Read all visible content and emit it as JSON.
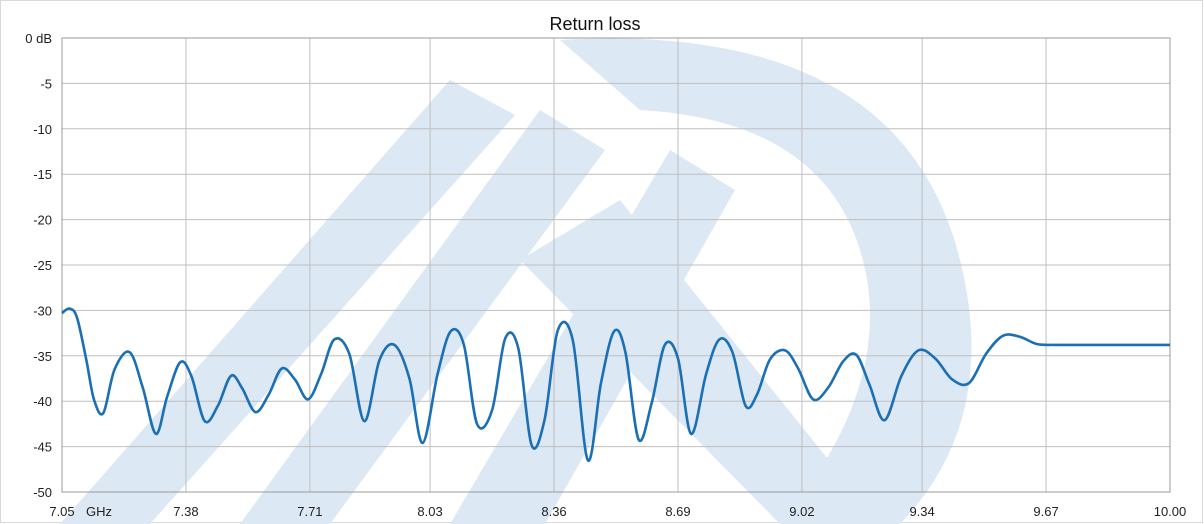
{
  "chart_data": {
    "type": "line",
    "title": "Return loss",
    "x_unit_label": "GHz",
    "y_unit_label": "dB",
    "xlim": [
      7.05,
      10.0
    ],
    "ylim": [
      -50,
      0
    ],
    "x_ticks": [
      7.05,
      7.38,
      7.71,
      8.03,
      8.36,
      8.69,
      9.02,
      9.34,
      9.67,
      10.0
    ],
    "x_tick_labels": [
      "7.05",
      "7.38",
      "7.71",
      "8.03",
      "8.36",
      "8.69",
      "9.02",
      "9.34",
      "9.67",
      "10.00"
    ],
    "y_ticks": [
      0,
      -5,
      -10,
      -15,
      -20,
      -25,
      -30,
      -35,
      -40,
      -45,
      -50
    ],
    "y_tick_labels": [
      "0 dB",
      "-5",
      "-10",
      "-15",
      "-20",
      "-25",
      "-30",
      "-35",
      "-40",
      "-45",
      "-50"
    ],
    "grid": true,
    "line_color": "#1a6fb5",
    "watermark_color": "#dce8f4",
    "series": [
      {
        "x": [
          7.05,
          7.07,
          7.09,
          7.115,
          7.135,
          7.16,
          7.19,
          7.23,
          7.265,
          7.3,
          7.33,
          7.365,
          7.395,
          7.43,
          7.465,
          7.5,
          7.53,
          7.565,
          7.6,
          7.635,
          7.67,
          7.705,
          7.74,
          7.775,
          7.815,
          7.855,
          7.895,
          7.935,
          7.975,
          8.01,
          8.05,
          8.085,
          8.12,
          8.155,
          8.195,
          8.23,
          8.265,
          8.3,
          8.335,
          8.37,
          8.41,
          8.45,
          8.485,
          8.52,
          8.55,
          8.585,
          8.62,
          8.655,
          8.69,
          8.725,
          8.765,
          8.8,
          8.835,
          8.87,
          8.9,
          8.935,
          8.975,
          9.01,
          9.05,
          9.09,
          9.13,
          9.165,
          9.2,
          9.24,
          9.285,
          9.33,
          9.375,
          9.42,
          9.465,
          9.51,
          9.555,
          9.6,
          9.645,
          9.69,
          9.735,
          9.78,
          9.825,
          9.87,
          9.915,
          9.96,
          10.0
        ],
        "y": [
          -30.3,
          -29.8,
          -30.8,
          -35.5,
          -39.8,
          -41.3,
          -36.5,
          -34.6,
          -38.5,
          -43.6,
          -39.5,
          -35.7,
          -37.3,
          -42.2,
          -40.5,
          -37.2,
          -38.6,
          -41.2,
          -39.3,
          -36.4,
          -37.6,
          -39.8,
          -37.0,
          -33.2,
          -34.8,
          -42.2,
          -35.5,
          -33.8,
          -37.5,
          -44.6,
          -37.0,
          -32.3,
          -33.8,
          -42.5,
          -41.0,
          -33.1,
          -34.2,
          -44.8,
          -42.0,
          -32.2,
          -33.3,
          -46.5,
          -38.0,
          -32.3,
          -34.6,
          -44.2,
          -40.2,
          -33.8,
          -35.3,
          -43.6,
          -37.0,
          -33.2,
          -34.6,
          -40.5,
          -39.3,
          -35.4,
          -34.4,
          -36.4,
          -39.8,
          -38.5,
          -35.6,
          -34.9,
          -38.2,
          -42.1,
          -37.2,
          -34.4,
          -35.3,
          -37.6,
          -38.0,
          -34.8,
          -32.8,
          -32.9,
          -33.7,
          -33.8,
          -33.8,
          -33.8,
          -33.8,
          -33.8,
          -33.8,
          -33.8,
          -33.8
        ]
      }
    ]
  }
}
